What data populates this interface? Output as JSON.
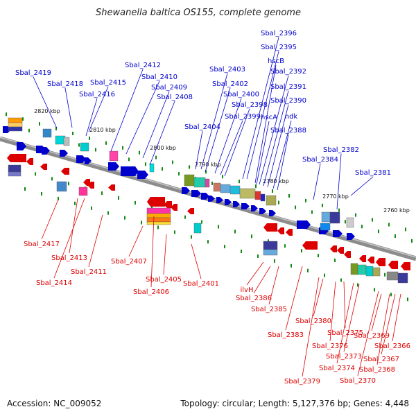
{
  "title": "Shewanella baltica OS155, complete genome",
  "footer": {
    "accession": "Accession: NC_009052",
    "topology": "Topology: circular; Length: 5,127,376 bp; Genes: 4,448"
  },
  "colors": {
    "forward": "#0000cc",
    "reverse": "#dd0000",
    "axis": "#777777",
    "tick": "#118811"
  },
  "scale_labels": [
    "2820 kbp",
    "2810 kbp",
    "2800 kbp",
    "2790 kbp",
    "2780 kbp",
    "2770 kbp",
    "2760 kbp"
  ],
  "forward_genes": [
    "Sbal_2419",
    "Sbal_2418",
    "Sbal_2415",
    "Sbal_2416",
    "Sbal_2412",
    "Sbal_2410",
    "Sbal_2409",
    "Sbal_2408",
    "Sbal_2404",
    "Sbal_2403",
    "Sbal_2402",
    "Sbal_2400",
    "Sbal_2399",
    "Sbal_2398",
    "Sbal_2396",
    "Sbal_2395",
    "hscB",
    "Sbal_2392",
    "Sbal_2391",
    "hscA",
    "Sbal_2390",
    "ndk",
    "Sbal_2388",
    "Sbal_2382",
    "Sbal_2384",
    "Sbal_2381"
  ],
  "reverse_genes": [
    "Sbal_2417",
    "Sbal_2413",
    "Sbal_2414",
    "Sbal_2411",
    "Sbal_2407",
    "Sbal_2406",
    "Sbal_2405",
    "Sbal_2401",
    "ilvH",
    "Sbal_2386",
    "Sbal_2385",
    "Sbal_2383",
    "Sbal_2380",
    "Sbal_2379",
    "Sbal_2376",
    "Sbal_2375",
    "Sbal_2374",
    "Sbal_2373",
    "Sbal_2370",
    "Sbal_2369",
    "Sbal_2368",
    "Sbal_2367",
    "Sbal_2366"
  ]
}
